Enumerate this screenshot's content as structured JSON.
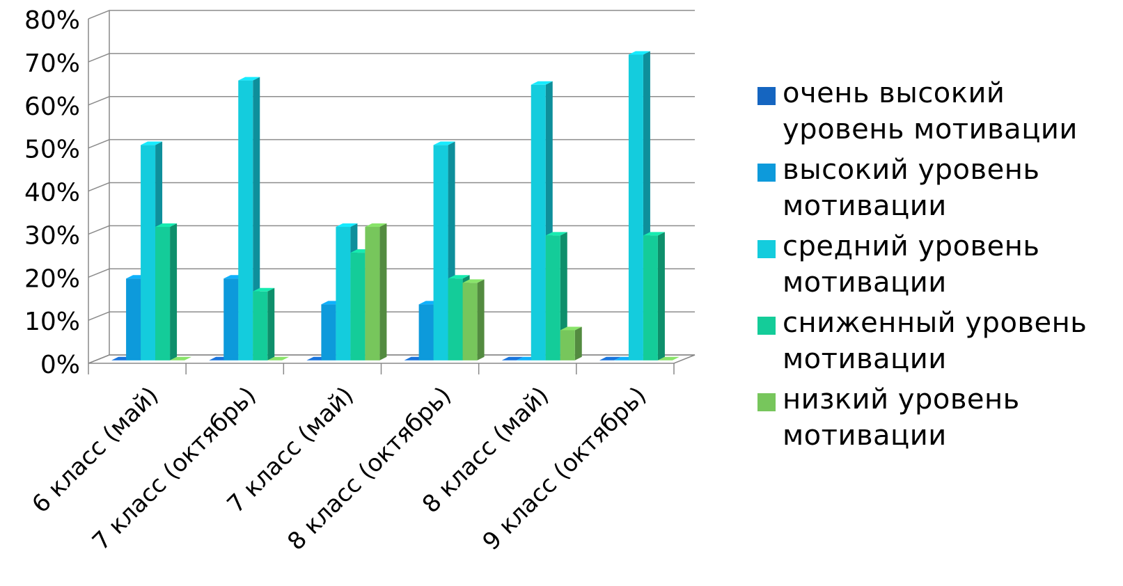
{
  "chart_data": {
    "type": "bar",
    "title": "",
    "xlabel": "",
    "ylabel": "",
    "ylim": [
      0,
      80
    ],
    "y_ticks": [
      "0%",
      "10%",
      "20%",
      "30%",
      "40%",
      "50%",
      "60%",
      "70%",
      "80%"
    ],
    "grid": true,
    "legend_position": "right",
    "categories": [
      "6 класс (май)",
      "7 класс (октябрь)",
      "7 класс (май)",
      "8 класс (октябрь)",
      "8 класс (май)",
      "9 класс (октябрь)"
    ],
    "series": [
      {
        "name": "очень высокий уровень мотивации",
        "color": "#1565C0",
        "values": [
          0,
          0,
          0,
          0,
          0,
          0
        ]
      },
      {
        "name": "высокий уровень мотивации",
        "color": "#0D9ADB",
        "values": [
          19,
          19,
          13,
          13,
          0,
          0
        ]
      },
      {
        "name": "средний уровень мотивации",
        "color": "#14CCDD",
        "values": [
          50,
          65,
          31,
          50,
          64,
          71
        ]
      },
      {
        "name": "сниженный уровень мотивации",
        "color": "#14CC99",
        "values": [
          31,
          16,
          25,
          19,
          29,
          29
        ]
      },
      {
        "name": "низкий уровень мотивации",
        "color": "#77C65C",
        "values": [
          0,
          0,
          31,
          18,
          7,
          0
        ]
      }
    ]
  }
}
